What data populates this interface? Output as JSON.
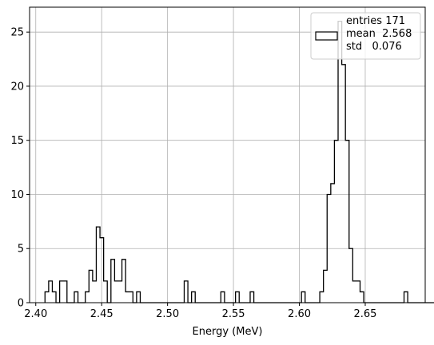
{
  "chart_data": {
    "type": "bar",
    "style": "step-histogram",
    "title": "",
    "xlabel": "Energy (MeV)",
    "ylabel": "",
    "xlim": [
      2.3953,
      2.6955
    ],
    "ylim": [
      0,
      27.3
    ],
    "grid": true,
    "legend_position": "top-right",
    "x_ticks": [
      "2.40",
      "2.45",
      "2.50",
      "2.55",
      "2.60",
      "2.65"
    ],
    "y_ticks": [
      "0",
      "5",
      "10",
      "15",
      "20",
      "25"
    ],
    "bin_start": 2.407,
    "bin_width": 0.00278,
    "values": [
      1,
      2,
      1,
      0,
      2,
      2,
      0,
      0,
      1,
      0,
      0,
      1,
      3,
      2,
      7,
      6,
      2,
      0,
      4,
      2,
      2,
      4,
      1,
      1,
      0,
      1,
      0,
      0,
      0,
      0,
      0,
      0,
      0,
      0,
      0,
      0,
      0,
      0,
      2,
      0,
      1,
      0,
      0,
      0,
      0,
      0,
      0,
      0,
      1,
      0,
      0,
      0,
      1,
      0,
      0,
      0,
      1,
      0,
      0,
      0,
      0,
      0,
      0,
      0,
      0,
      0,
      0,
      0,
      0,
      0,
      1,
      0,
      0,
      0,
      0,
      1,
      3,
      10,
      11,
      15,
      26,
      22,
      15,
      5,
      2,
      2,
      1,
      0,
      0,
      0,
      0,
      0,
      0,
      0,
      0,
      0,
      0,
      0,
      1,
      0,
      0,
      0,
      0,
      0,
      0,
      0,
      0,
      0,
      0,
      0,
      0,
      0,
      1
    ],
    "legend": {
      "label_lines": [
        "entries 171",
        "mean  2.568",
        "std   0.076"
      ]
    },
    "colors": {
      "line": "#000000",
      "grid": "#b0b0b0",
      "legend_border": "#cccccc"
    }
  }
}
